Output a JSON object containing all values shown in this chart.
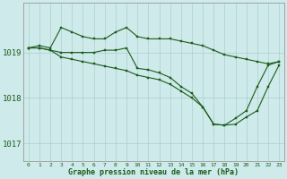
{
  "title": "Graphe pression niveau de la mer (hPa)",
  "background_color": "#ceeaea",
  "grid_color": "#aecece",
  "line_color": "#1a5c1a",
  "xlim": [
    -0.5,
    23.5
  ],
  "ylim": [
    1016.6,
    1020.1
  ],
  "yticks": [
    1017,
    1018,
    1019
  ],
  "line1_x": [
    0,
    1,
    2,
    3,
    4,
    5,
    6,
    7,
    8,
    9,
    10,
    11,
    12,
    13,
    14,
    15,
    16,
    17,
    18,
    19,
    20,
    21,
    22,
    23
  ],
  "line1_y": [
    1019.1,
    1019.15,
    1019.1,
    1019.55,
    1019.45,
    1019.35,
    1019.3,
    1019.3,
    1019.45,
    1019.55,
    1019.35,
    1019.3,
    1019.3,
    1019.3,
    1019.25,
    1019.2,
    1019.15,
    1019.05,
    1018.95,
    1018.9,
    1018.85,
    1018.8,
    1018.75,
    1018.8
  ],
  "line2_x": [
    0,
    1,
    2,
    3,
    4,
    5,
    6,
    7,
    8,
    9,
    10,
    11,
    12,
    13,
    14,
    15,
    16,
    17,
    18,
    19,
    20,
    21,
    22,
    23
  ],
  "line2_y": [
    1019.1,
    1019.1,
    1019.05,
    1019.0,
    1019.0,
    1019.0,
    1019.0,
    1019.05,
    1019.05,
    1019.1,
    1018.65,
    1018.62,
    1018.55,
    1018.45,
    1018.25,
    1018.1,
    1017.8,
    1017.42,
    1017.4,
    1017.55,
    1017.72,
    1018.25,
    1018.72,
    1018.8
  ],
  "line3_x": [
    0,
    1,
    2,
    3,
    4,
    5,
    6,
    7,
    8,
    9,
    10,
    11,
    12,
    13,
    14,
    15,
    16,
    17,
    18,
    19,
    20,
    21,
    22,
    23
  ],
  "line3_y": [
    1019.1,
    1019.1,
    1019.05,
    1018.9,
    1018.85,
    1018.8,
    1018.75,
    1018.7,
    1018.65,
    1018.6,
    1018.5,
    1018.45,
    1018.4,
    1018.3,
    1018.15,
    1018.0,
    1017.8,
    1017.42,
    1017.4,
    1017.42,
    1017.58,
    1017.72,
    1018.25,
    1018.72
  ],
  "figwidth": 3.2,
  "figheight": 2.0,
  "dpi": 100
}
